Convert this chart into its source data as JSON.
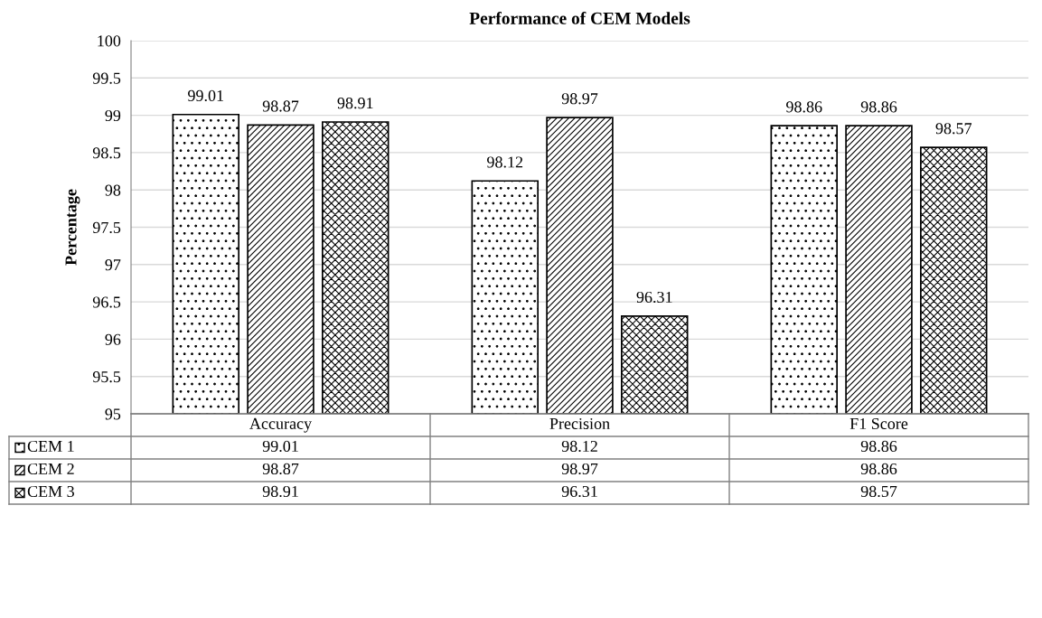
{
  "chart_data": {
    "type": "bar",
    "title": "Performance of CEM Models",
    "ylabel": "Percentage",
    "categories": [
      "Accuracy",
      "Precision",
      "F1 Score"
    ],
    "series": [
      {
        "name": "CEM 1",
        "color": "#000000",
        "values": [
          99.01,
          98.12,
          98.86
        ],
        "value_labels": [
          "99.01",
          "98.12",
          "98.86"
        ]
      },
      {
        "name": "CEM 2",
        "color": "#000000",
        "values": [
          98.87,
          98.97,
          98.86
        ],
        "value_labels": [
          "98.87",
          "98.97",
          "98.86"
        ]
      },
      {
        "name": "CEM 3",
        "color": "#000000",
        "values": [
          98.91,
          96.31,
          98.57
        ],
        "value_labels": [
          "98.91",
          "96.31",
          "98.57"
        ]
      }
    ],
    "ylim": [
      95,
      100
    ],
    "yticks": [
      95,
      95.5,
      96,
      96.5,
      97,
      97.5,
      98,
      98.5,
      99,
      99.5,
      100
    ],
    "grid": "y",
    "legend": "bottom",
    "annotations": [
      "99.01",
      "98.12",
      "98.86",
      "98.87",
      "98.97",
      "98.86",
      "98.91",
      "96.31",
      "98.57"
    ]
  }
}
